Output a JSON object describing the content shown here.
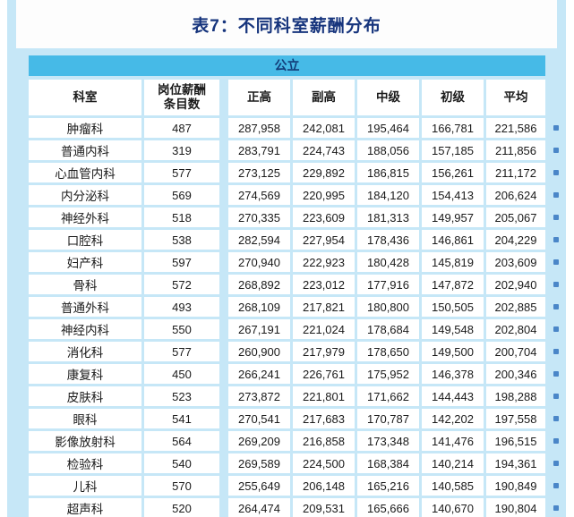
{
  "title": "表7：不同科室薪酬分布",
  "table": {
    "group_header": "公立",
    "columns": [
      "科室",
      "岗位薪酬\n条目数",
      "正高",
      "副高",
      "中级",
      "初级",
      "平均"
    ],
    "rows": [
      [
        "肿瘤科",
        "487",
        "287,958",
        "242,081",
        "195,464",
        "166,781",
        "221,586"
      ],
      [
        "普通内科",
        "319",
        "283,791",
        "224,743",
        "188,056",
        "157,185",
        "211,856"
      ],
      [
        "心血管内科",
        "577",
        "273,125",
        "229,892",
        "186,815",
        "156,261",
        "211,172"
      ],
      [
        "内分泌科",
        "569",
        "274,569",
        "220,995",
        "184,120",
        "154,413",
        "206,624"
      ],
      [
        "神经外科",
        "518",
        "270,335",
        "223,609",
        "181,313",
        "149,957",
        "205,067"
      ],
      [
        "口腔科",
        "538",
        "282,594",
        "227,954",
        "178,436",
        "146,861",
        "204,229"
      ],
      [
        "妇产科",
        "597",
        "270,940",
        "222,923",
        "180,428",
        "145,819",
        "203,609"
      ],
      [
        "骨科",
        "572",
        "268,892",
        "223,012",
        "177,916",
        "147,872",
        "202,940"
      ],
      [
        "普通外科",
        "493",
        "268,109",
        "217,821",
        "180,800",
        "150,505",
        "202,885"
      ],
      [
        "神经内科",
        "550",
        "267,191",
        "221,024",
        "178,684",
        "149,548",
        "202,804"
      ],
      [
        "消化科",
        "577",
        "260,900",
        "217,979",
        "178,650",
        "149,500",
        "200,704"
      ],
      [
        "康复科",
        "450",
        "266,241",
        "226,761",
        "175,952",
        "146,378",
        "200,346"
      ],
      [
        "皮肤科",
        "523",
        "273,872",
        "221,801",
        "171,662",
        "144,443",
        "198,288"
      ],
      [
        "眼科",
        "541",
        "270,541",
        "217,683",
        "170,787",
        "142,202",
        "197,558"
      ],
      [
        "影像放射科",
        "564",
        "269,209",
        "216,858",
        "173,348",
        "141,476",
        "196,515"
      ],
      [
        "检验科",
        "540",
        "269,589",
        "224,500",
        "168,384",
        "140,214",
        "194,361"
      ],
      [
        "儿科",
        "570",
        "255,649",
        "206,148",
        "165,216",
        "140,585",
        "190,849"
      ],
      [
        "超声科",
        "520",
        "264,474",
        "209,531",
        "165,666",
        "140,670",
        "190,804"
      ]
    ]
  },
  "colors": {
    "panel": "#c6e7f7",
    "group_header_bg": "#46bae7",
    "title_text": "#17357d",
    "group_header_text": "#123c78",
    "row_marker": "#4a86c8"
  }
}
